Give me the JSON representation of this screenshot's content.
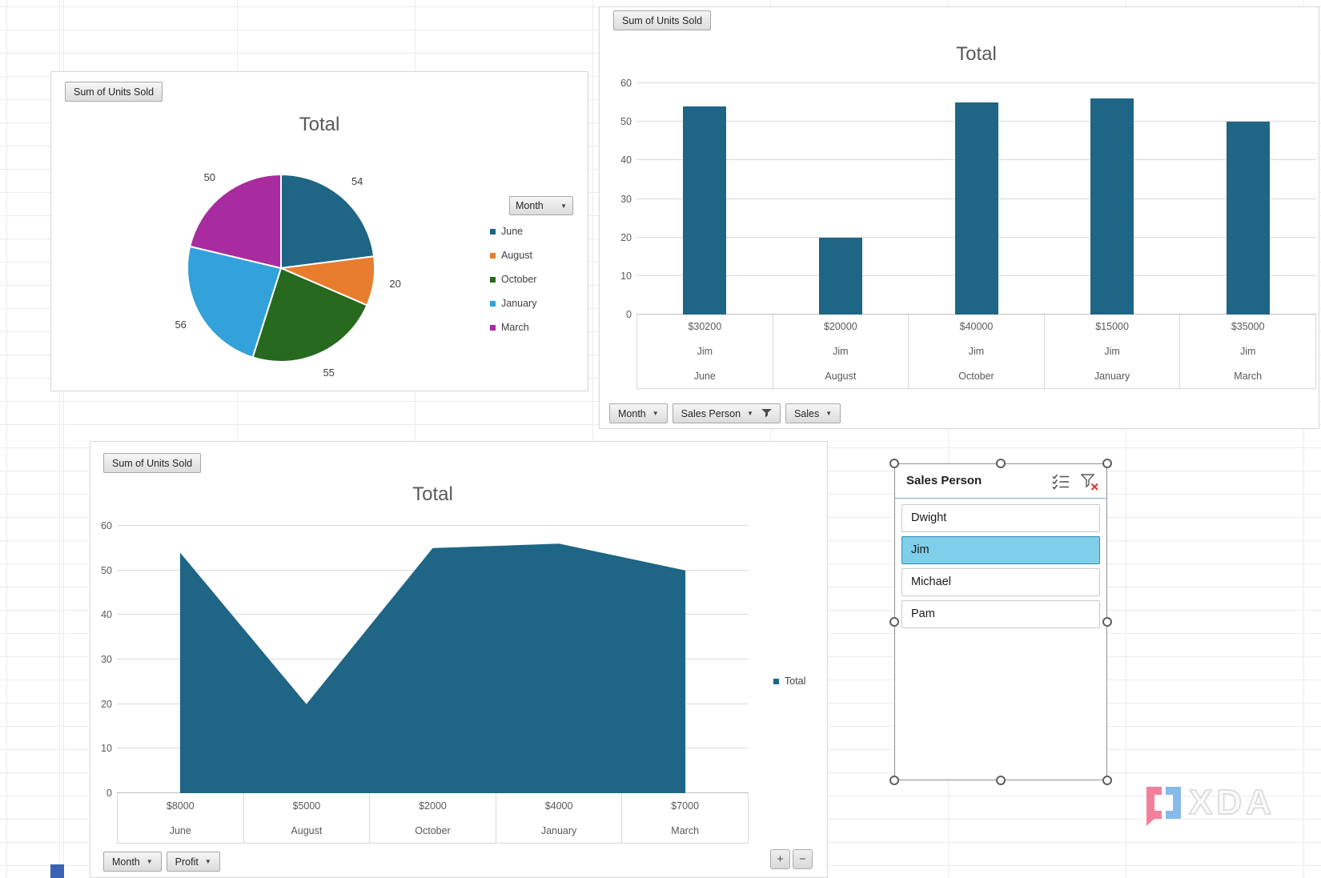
{
  "watermark": {
    "text": "XDA"
  },
  "colors": {
    "series_teal": "#1F6585",
    "grid": "#D9D9D9",
    "slicer_selected_fill": "#7FCEEA"
  },
  "pie_chart": {
    "field_button": "Sum of Units Sold"
  },
  "bar_chart": {
    "field_button": "Sum of Units Sold",
    "axis_buttons": {
      "month": "Month",
      "sales_person": "Sales Person",
      "sales": "Sales"
    }
  },
  "area_chart": {
    "field_button": "Sum of Units Sold",
    "axis_buttons": {
      "month": "Month",
      "profit": "Profit"
    },
    "zoom_in": "+",
    "zoom_out": "−"
  },
  "slicer": {
    "title": "Sales Person",
    "items": [
      {
        "label": "Dwight",
        "selected": false
      },
      {
        "label": "Jim",
        "selected": true
      },
      {
        "label": "Michael",
        "selected": false
      },
      {
        "label": "Pam",
        "selected": false
      }
    ]
  },
  "chart_data": [
    {
      "type": "pie",
      "title": "Total",
      "legend_title": "Month",
      "legend_position": "right",
      "categories": [
        "June",
        "August",
        "October",
        "January",
        "March"
      ],
      "values": [
        54,
        20,
        55,
        56,
        50
      ],
      "colors": [
        "#1F6585",
        "#E87D2E",
        "#27691F",
        "#33A1DA",
        "#A82C9F"
      ],
      "data_labels": true
    },
    {
      "type": "bar",
      "title": "Total",
      "categories": [
        [
          "$30200",
          "Jim",
          "June"
        ],
        [
          "$20000",
          "Jim",
          "August"
        ],
        [
          "$40000",
          "Jim",
          "October"
        ],
        [
          "$15000",
          "Jim",
          "January"
        ],
        [
          "$35000",
          "Jim",
          "March"
        ]
      ],
      "values": [
        54,
        20,
        55,
        56,
        50
      ],
      "ylim": [
        0,
        60
      ],
      "ytick_step": 10,
      "grid": true,
      "bar_color": "#1F6585"
    },
    {
      "type": "area",
      "title": "Total",
      "categories": [
        [
          "$8000",
          "June"
        ],
        [
          "$5000",
          "August"
        ],
        [
          "$2000",
          "October"
        ],
        [
          "$4000",
          "January"
        ],
        [
          "$7000",
          "March"
        ]
      ],
      "series": [
        {
          "name": "Total",
          "values": [
            54,
            20,
            55,
            56,
            50
          ]
        }
      ],
      "ylim": [
        0,
        60
      ],
      "ytick_step": 10,
      "grid": true,
      "area_color": "#1F6585",
      "legend_position": "right"
    }
  ]
}
